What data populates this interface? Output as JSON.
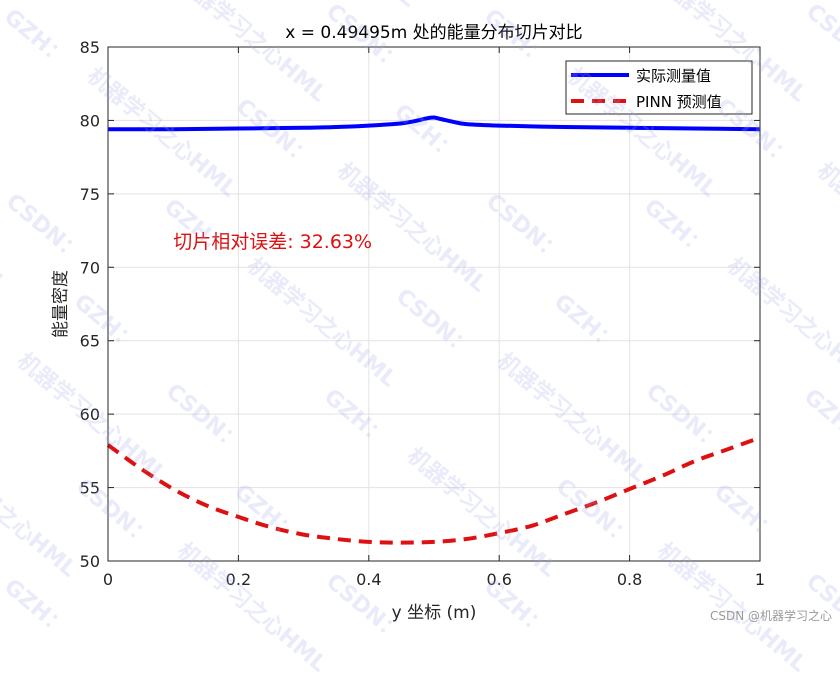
{
  "chart_data": {
    "type": "line",
    "title": "x = 0.49495m 处的能量分布切片对比",
    "xlabel": "y 坐标 (m)",
    "ylabel": "能量密度",
    "xlim": [
      0,
      1
    ],
    "ylim": [
      50,
      85
    ],
    "xticks": [
      0,
      0.2,
      0.4,
      0.6,
      0.8,
      1
    ],
    "xtick_labels": [
      "0",
      "0.2",
      "0.4",
      "0.6",
      "0.8",
      "1"
    ],
    "yticks": [
      50,
      55,
      60,
      65,
      70,
      75,
      80,
      85
    ],
    "ytick_labels": [
      "50",
      "55",
      "60",
      "65",
      "70",
      "75",
      "80",
      "85"
    ],
    "grid": true,
    "legend_position": "top-right",
    "series": [
      {
        "name": "实际测量值",
        "style": "solid",
        "color": "#0000ff",
        "x": [
          0,
          0.1,
          0.2,
          0.3,
          0.35,
          0.4,
          0.45,
          0.47,
          0.49,
          0.5,
          0.51,
          0.53,
          0.55,
          0.6,
          0.7,
          0.8,
          0.9,
          1.0
        ],
        "y": [
          79.4,
          79.4,
          79.45,
          79.5,
          79.55,
          79.65,
          79.8,
          79.95,
          80.15,
          80.2,
          80.1,
          79.9,
          79.75,
          79.65,
          79.55,
          79.5,
          79.45,
          79.4
        ]
      },
      {
        "name": "PINN 预测值",
        "style": "dashed",
        "color": "#dd1111",
        "x": [
          0,
          0.05,
          0.1,
          0.15,
          0.2,
          0.25,
          0.3,
          0.35,
          0.4,
          0.45,
          0.5,
          0.55,
          0.6,
          0.65,
          0.7,
          0.75,
          0.8,
          0.85,
          0.9,
          0.95,
          1.0
        ],
        "y": [
          57.9,
          56.3,
          54.9,
          53.8,
          53.0,
          52.3,
          51.8,
          51.5,
          51.3,
          51.25,
          51.3,
          51.5,
          51.9,
          52.4,
          53.2,
          54.0,
          54.9,
          55.8,
          56.8,
          57.6,
          58.4
        ]
      }
    ],
    "annotation": {
      "text": "切片相对误差: 32.63%",
      "color": "#dd1111",
      "x": 0.1,
      "y": 71.8
    }
  },
  "watermark": {
    "texts": [
      "机器学习之心HML",
      "CSDN：",
      "GZH："
    ],
    "credit": "CSDN @机器学习之心"
  }
}
